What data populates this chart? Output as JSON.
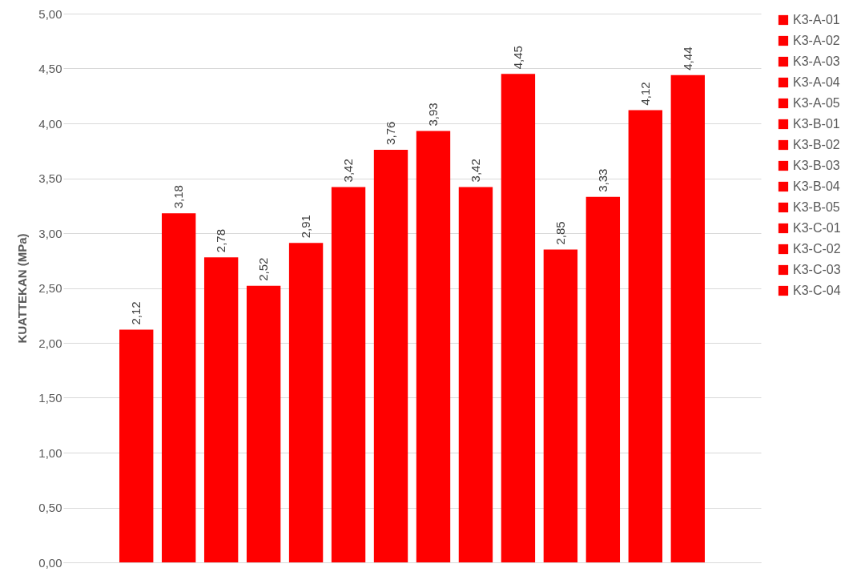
{
  "chart_data": {
    "type": "bar",
    "ylabel": "KUATTEKAN (MPa)",
    "categories": [
      null
    ],
    "ylim": [
      0,
      5
    ],
    "yticks": [
      {
        "value": 0,
        "label": "0,00"
      },
      {
        "value": 0.5,
        "label": "0,50"
      },
      {
        "value": 1,
        "label": "1,00"
      },
      {
        "value": 1.5,
        "label": "1,50"
      },
      {
        "value": 2,
        "label": "2,00"
      },
      {
        "value": 2.5,
        "label": "2,50"
      },
      {
        "value": 3,
        "label": "3,00"
      },
      {
        "value": 3.5,
        "label": "3,50"
      },
      {
        "value": 4,
        "label": "4,00"
      },
      {
        "value": 4.5,
        "label": "4,50"
      },
      {
        "value": 5,
        "label": "5,00"
      }
    ],
    "grid": "y",
    "legend": "right",
    "tick_labels": "y",
    "series": [
      {
        "name": "K3-A-01",
        "color": "#ff0000",
        "values": [
          2.12
        ],
        "value_labels": [
          "2,12"
        ]
      },
      {
        "name": "K3-A-02",
        "color": "#ff0000",
        "values": [
          3.18
        ],
        "value_labels": [
          "3,18"
        ]
      },
      {
        "name": "K3-A-03",
        "color": "#ff0000",
        "values": [
          2.78
        ],
        "value_labels": [
          "2,78"
        ]
      },
      {
        "name": "K3-A-04",
        "color": "#ff0000",
        "values": [
          2.52
        ],
        "value_labels": [
          "2,52"
        ]
      },
      {
        "name": "K3-A-05",
        "color": "#ff0000",
        "values": [
          2.91
        ],
        "value_labels": [
          "2,91"
        ]
      },
      {
        "name": "K3-B-01",
        "color": "#ff0000",
        "values": [
          3.42
        ],
        "value_labels": [
          "3,42"
        ]
      },
      {
        "name": "K3-B-02",
        "color": "#ff0000",
        "values": [
          3.76
        ],
        "value_labels": [
          "3,76"
        ]
      },
      {
        "name": "K3-B-03",
        "color": "#ff0000",
        "values": [
          3.93
        ],
        "value_labels": [
          "3,93"
        ]
      },
      {
        "name": "K3-B-04",
        "color": "#ff0000",
        "values": [
          3.42
        ],
        "value_labels": [
          "3,42"
        ]
      },
      {
        "name": "K3-B-05",
        "color": "#ff0000",
        "values": [
          4.45
        ],
        "value_labels": [
          "4,45"
        ]
      },
      {
        "name": "K3-C-01",
        "color": "#ff0000",
        "values": [
          2.85
        ],
        "value_labels": [
          "2,85"
        ]
      },
      {
        "name": "K3-C-02",
        "color": "#ff0000",
        "values": [
          3.33
        ],
        "value_labels": [
          "3,33"
        ]
      },
      {
        "name": "K3-C-03",
        "color": "#ff0000",
        "values": [
          4.12
        ],
        "value_labels": [
          "4,12"
        ]
      },
      {
        "name": "K3-C-04",
        "color": "#ff0000",
        "values": [
          4.44
        ],
        "value_labels": [
          "4,44"
        ]
      }
    ]
  }
}
